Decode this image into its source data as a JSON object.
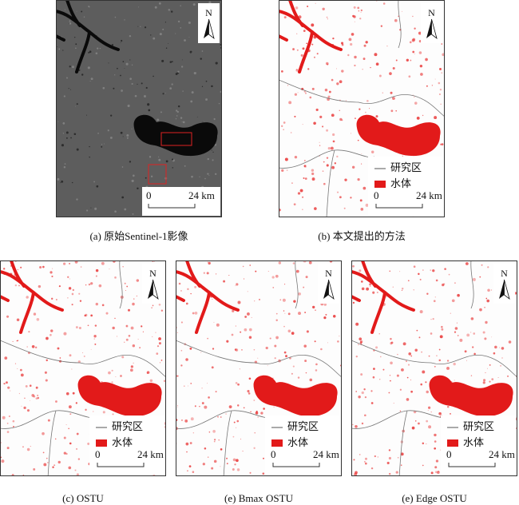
{
  "panels": [
    {
      "caption": "(a) 原始Sentinel-1影像",
      "north": "N",
      "scale": [
        "0",
        "24 km"
      ]
    },
    {
      "caption": "(b) 本文提出的方法",
      "north": "N",
      "legend": [
        "研究区",
        "水体"
      ],
      "scale": [
        "0",
        "24 km"
      ]
    },
    {
      "caption": "(c) OSTU",
      "north": "N",
      "legend": [
        "研究区",
        "水体"
      ],
      "scale": [
        "0",
        "24 km"
      ]
    },
    {
      "caption": "(e) Bmax OSTU",
      "north": "N",
      "legend": [
        "研究区",
        "水体"
      ],
      "scale": [
        "0",
        "24 km"
      ]
    },
    {
      "caption": "(e) Edge OSTU",
      "north": "N",
      "legend": [
        "研究区",
        "水体"
      ],
      "scale": [
        "0",
        "24 km"
      ]
    }
  ]
}
